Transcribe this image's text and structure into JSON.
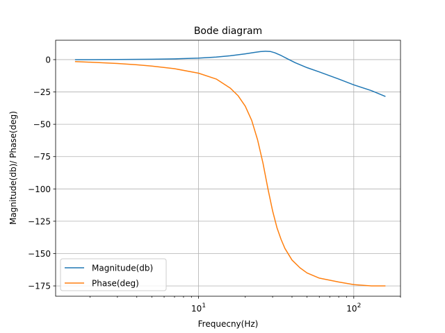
{
  "chart_data": {
    "type": "line",
    "title": "Bode diagram",
    "xlabel": "Frequecny(Hz)",
    "ylabel": "Magnitude(db)/ Phase(deg)",
    "xscale": "log",
    "xlim": [
      1.2,
      200
    ],
    "ylim": [
      -183,
      15
    ],
    "xticks": [
      {
        "value": 10,
        "base": "10",
        "exp": "1"
      },
      {
        "value": 100,
        "base": "10",
        "exp": "2"
      }
    ],
    "yticks": [
      {
        "value": 0,
        "label": "0"
      },
      {
        "value": -25,
        "label": "−25"
      },
      {
        "value": -50,
        "label": "−50"
      },
      {
        "value": -75,
        "label": "−75"
      },
      {
        "value": -100,
        "label": "−100"
      },
      {
        "value": -125,
        "label": "−125"
      },
      {
        "value": -150,
        "label": "−150"
      },
      {
        "value": -175,
        "label": "−175"
      }
    ],
    "grid": true,
    "legend_position": "lower-left",
    "series": [
      {
        "name": "Magnitude(db)",
        "color": "#1f77b4",
        "x": [
          1.6,
          2,
          3,
          5,
          7,
          10,
          13,
          16,
          20,
          23,
          25,
          27,
          29,
          31,
          34,
          38,
          42,
          50,
          60,
          80,
          100,
          130,
          160
        ],
        "y": [
          0,
          0,
          0.1,
          0.3,
          0.6,
          1.2,
          2,
          3,
          4.5,
          5.6,
          6.2,
          6.5,
          6.3,
          5.3,
          3.2,
          0.2,
          -2.4,
          -6.2,
          -9.5,
          -15,
          -19.5,
          -24,
          -28.5
        ]
      },
      {
        "name": "Phase(deg)",
        "color": "#ff7f0e",
        "x": [
          1.6,
          2,
          3,
          4,
          5,
          7,
          10,
          13,
          16,
          18,
          20,
          22,
          24,
          26,
          28,
          30,
          32,
          34,
          36,
          40,
          45,
          50,
          60,
          80,
          100,
          130,
          160
        ],
        "y": [
          -1.5,
          -2,
          -3,
          -4,
          -5,
          -7,
          -10.5,
          -15,
          -22,
          -28,
          -36,
          -47,
          -62,
          -80,
          -100,
          -117,
          -130,
          -139,
          -146,
          -155,
          -161,
          -165,
          -169,
          -172,
          -174,
          -175,
          -175
        ]
      }
    ]
  }
}
